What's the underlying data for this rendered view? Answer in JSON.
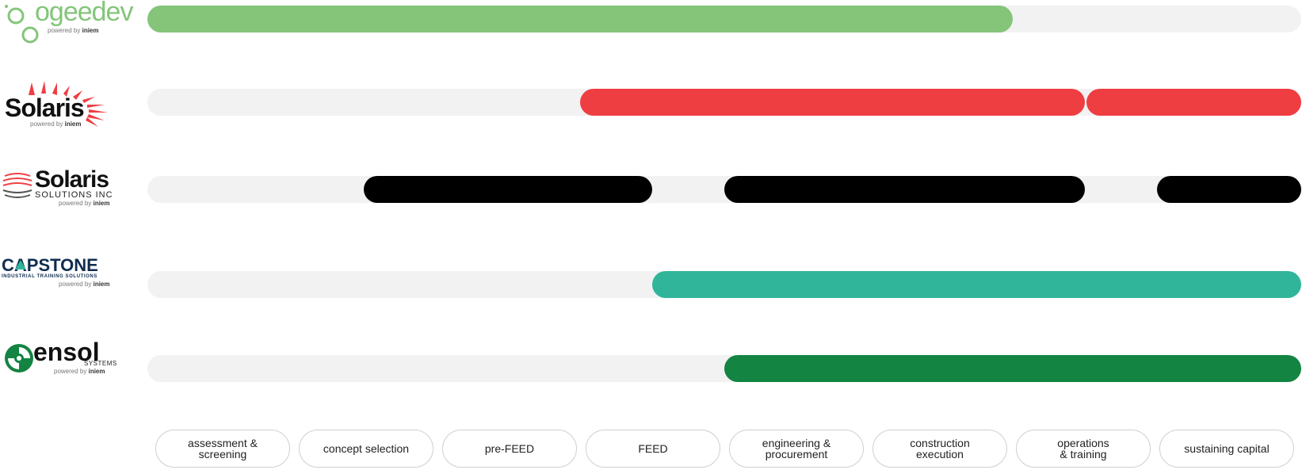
{
  "phases": [
    {
      "label": "assessment &\nscreening"
    },
    {
      "label": "concept selection"
    },
    {
      "label": "pre-FEED"
    },
    {
      "label": "FEED"
    },
    {
      "label": "engineering &\nprocurement"
    },
    {
      "label": "construction\nexecution"
    },
    {
      "label": "operations\n& training"
    },
    {
      "label": "sustaining capital"
    }
  ],
  "companies": [
    {
      "logo_word": "ogeedev",
      "powered_by": "powered by",
      "powered_brand": "iniem",
      "color": "#84c57a",
      "segments": [
        [
          0,
          6
        ]
      ]
    },
    {
      "logo_word": "Solaris",
      "powered_by": "powered by",
      "powered_brand": "iniem",
      "color": "#ef3e42",
      "segments": [
        [
          3,
          6.5
        ],
        [
          6.5,
          8
        ]
      ]
    },
    {
      "logo_word": "Solaris",
      "logo_sub": "SOLUTIONS INC",
      "powered_by": "powered by",
      "powered_brand": "iniem",
      "color": "#000000",
      "segments": [
        [
          1.5,
          3.5
        ],
        [
          4,
          6.5
        ],
        [
          7,
          8
        ]
      ]
    },
    {
      "logo_word": "CAPSTONE",
      "logo_sub": "INDUSTRIAL TRAINING SOLUTIONS",
      "powered_by": "powered by",
      "powered_brand": "iniem",
      "color": "#31b59a",
      "segments": [
        [
          3.5,
          8
        ]
      ]
    },
    {
      "logo_word": "ensol",
      "logo_sub": "SYSTEMS",
      "powered_by": "powered by",
      "powered_brand": "iniem",
      "color": "#138442",
      "segments": [
        [
          4,
          8
        ]
      ]
    }
  ]
}
